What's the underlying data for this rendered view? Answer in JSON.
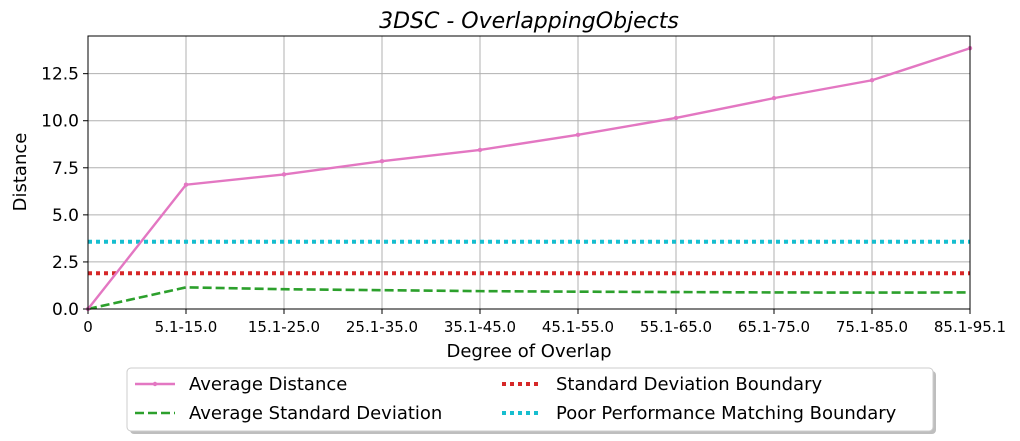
{
  "chart_data": {
    "type": "line",
    "title": "3DSC - OverlappingObjects",
    "xlabel": "Degree of Overlap",
    "ylabel": "Distance",
    "categories": [
      "0",
      "5.1-15.0",
      "15.1-25.0",
      "25.1-35.0",
      "35.1-45.0",
      "45.1-55.0",
      "55.1-65.0",
      "65.1-75.0",
      "75.1-85.0",
      "85.1-95.1"
    ],
    "yticks": [
      "0.0",
      "2.5",
      "5.0",
      "7.5",
      "10.0",
      "12.5"
    ],
    "ytick_values": [
      0,
      2.5,
      5,
      7.5,
      10,
      12.5
    ],
    "ylim": [
      0,
      14.5
    ],
    "grid": true,
    "legend_location": "below",
    "series": [
      {
        "name": "Average Distance",
        "color": "#e377c2",
        "style": "solid-marker",
        "values": [
          0,
          6.6,
          7.15,
          7.85,
          8.45,
          9.25,
          10.15,
          11.2,
          12.15,
          13.85
        ]
      },
      {
        "name": "Average Standard Deviation",
        "color": "#2ca02c",
        "style": "dashed",
        "values": [
          0,
          1.15,
          1.05,
          1.0,
          0.95,
          0.92,
          0.9,
          0.88,
          0.87,
          0.88
        ]
      },
      {
        "name": "Standard Deviation Boundary",
        "color": "#d62728",
        "style": "dotted",
        "values": [
          1.9,
          1.9,
          1.9,
          1.9,
          1.9,
          1.9,
          1.9,
          1.9,
          1.9,
          1.9
        ]
      },
      {
        "name": "Poor Performance Matching Boundary",
        "color": "#17becf",
        "style": "dotted",
        "values": [
          3.57,
          3.57,
          3.57,
          3.57,
          3.57,
          3.57,
          3.57,
          3.57,
          3.57,
          3.57
        ]
      }
    ]
  }
}
